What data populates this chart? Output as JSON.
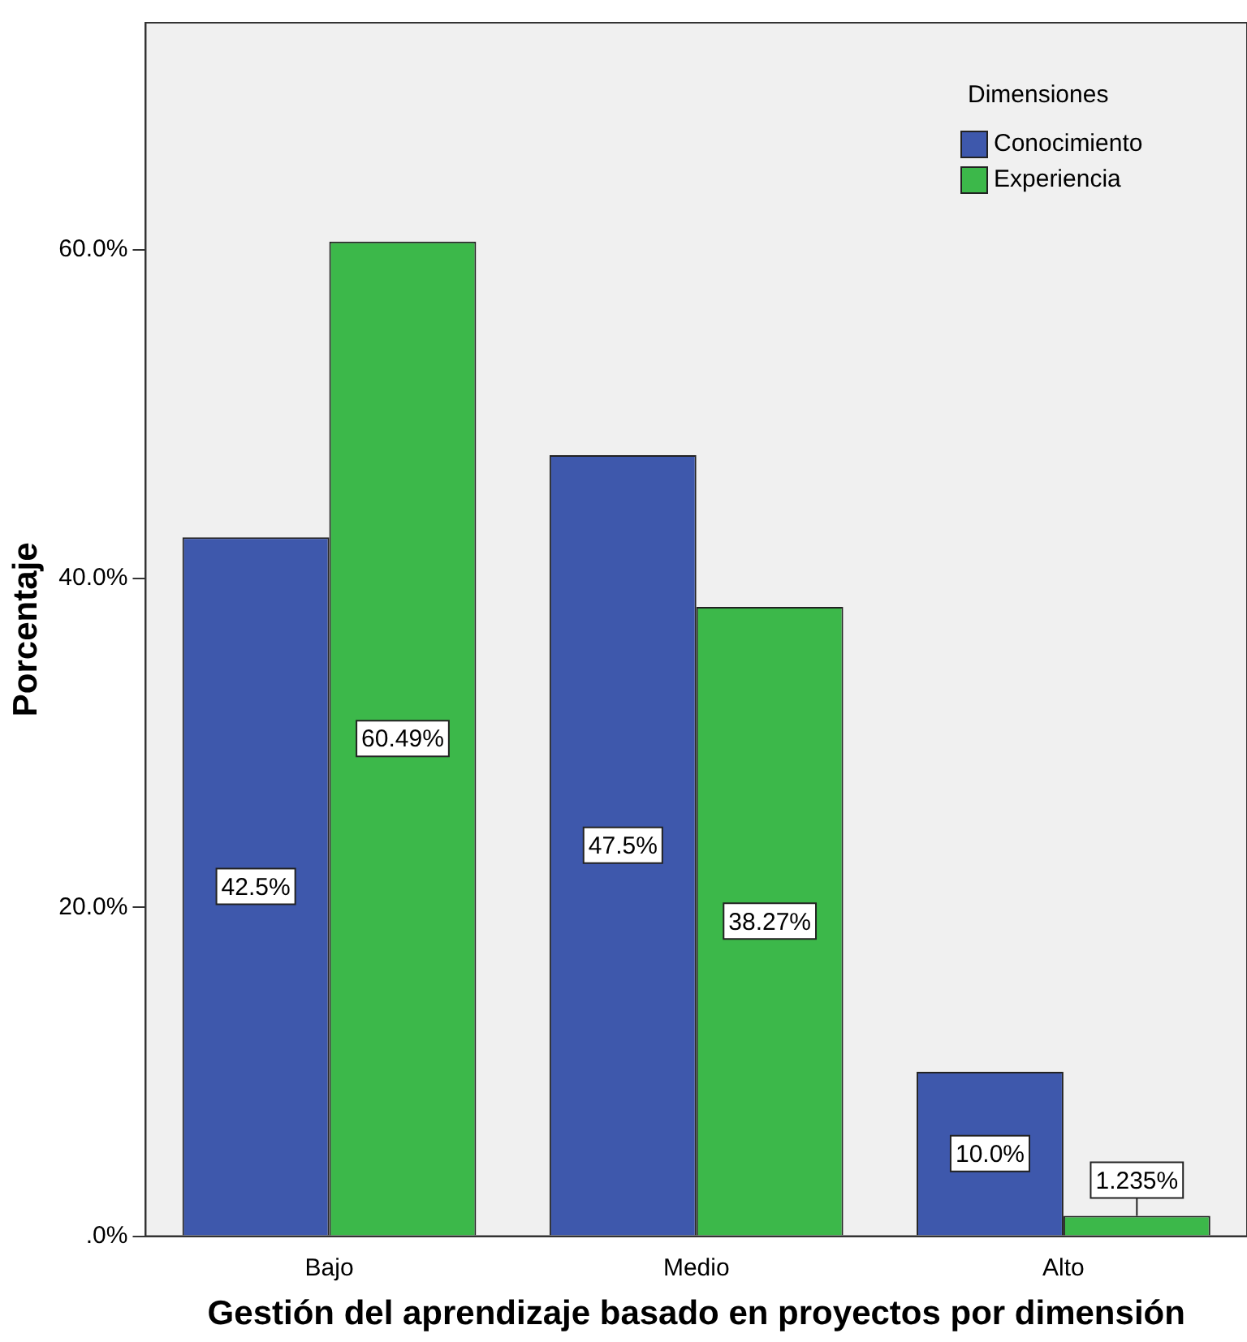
{
  "chart_data": {
    "type": "bar",
    "xlabel": "Gestión del aprendizaje basado en proyectos por dimensión",
    "ylabel": "Porcentaje",
    "legend_title": "Dimensiones",
    "legend": "top right",
    "grid": false,
    "categories": [
      "Bajo",
      "Medio",
      "Alto"
    ],
    "series": [
      {
        "name": "Conocimiento",
        "color": "#3e58ac",
        "values": [
          42.5,
          47.5,
          10.0
        ],
        "value_labels": [
          "42.5%",
          "47.5%",
          "10.0%"
        ]
      },
      {
        "name": "Experiencia",
        "color": "#3cb84a",
        "values": [
          60.49,
          38.27,
          1.235
        ],
        "value_labels": [
          "60.49%",
          "38.27%",
          "1.235%"
        ]
      }
    ],
    "ylim": [
      0,
      73.8
    ],
    "yticks": [
      {
        "value": 0,
        "label": ".0%"
      },
      {
        "value": 20,
        "label": "20.0%"
      },
      {
        "value": 40,
        "label": "40.0%"
      },
      {
        "value": 60,
        "label": "60.0%"
      }
    ]
  }
}
